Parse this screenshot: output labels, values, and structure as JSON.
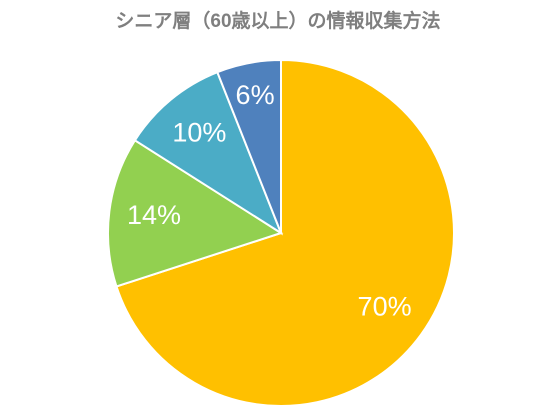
{
  "chart_data": {
    "type": "pie",
    "title": "シニア層（60歳以上）の情報収集方法",
    "values": [
      70,
      14,
      10,
      6
    ],
    "value_labels": [
      "70%",
      "14%",
      "10%",
      "6%"
    ],
    "colors": [
      "#ffc000",
      "#92d050",
      "#4bacc6",
      "#4f81bd"
    ]
  }
}
